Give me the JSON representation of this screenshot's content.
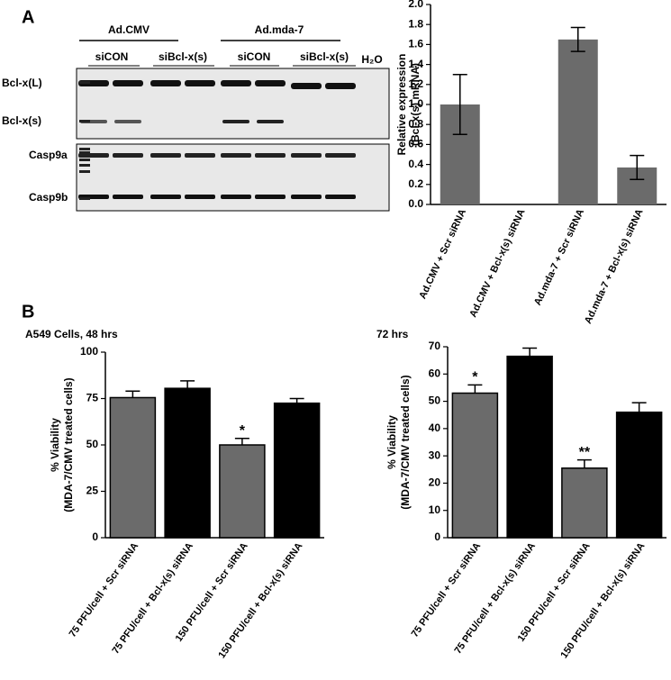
{
  "figure": {
    "panel_a": "A",
    "panel_b": "B"
  },
  "gel": {
    "groups": [
      "Ad.CMV",
      "Ad.mda-7"
    ],
    "subgroups": [
      "siCON",
      "siBcl-x(s)",
      "siCON",
      "siBcl-x(s)"
    ],
    "control": "H₂O",
    "rows": [
      "Bcl-x(L)",
      "Bcl-x(s)",
      "Casp9a",
      "Casp9b"
    ]
  },
  "chart_data": [
    {
      "type": "bar",
      "y_label": [
        "Relative expression",
        "(Bcl-x(s) mRNA)"
      ],
      "categories": [
        "Ad.CMV + Scr siRNA",
        "Ad.CMV + Bcl-x(s) siRNA",
        "Ad.mda-7 + Scr siRNA",
        "Ad.mda-7 + Bcl-x(s) siRNA"
      ],
      "values": [
        1.0,
        0,
        1.65,
        0.37
      ],
      "errors": [
        0.3,
        0,
        0.12,
        0.12
      ],
      "error_direction": "both",
      "colors": [
        "#6b6b6b",
        "#6b6b6b",
        "#6b6b6b",
        "#6b6b6b"
      ],
      "outline": false,
      "ylim": [
        0,
        2
      ],
      "yticks": [
        {
          "value": 0,
          "label": "0.0"
        },
        0.2,
        0.4,
        0.6,
        0.8,
        {
          "value": 1,
          "label": "1.0"
        },
        1.2,
        1.4,
        1.6,
        1.8,
        {
          "value": 2,
          "label": "2.0"
        }
      ]
    },
    {
      "type": "bar",
      "title": "A549 Cells, 48 hrs",
      "y_label": [
        "% Viability",
        "(MDA-7/CMV treated cells)"
      ],
      "categories": [
        "75 PFU/cell + Scr siRNA",
        "75 PFU/cell + Bcl-x(s) siRNA",
        "150 PFU/cell + Scr siRNA",
        "150 PFU/cell + Bcl-x(s) siRNA"
      ],
      "values": [
        75.5,
        80.5,
        50,
        72.5
      ],
      "errors": [
        3.5,
        4,
        3.5,
        2.5
      ],
      "error_direction": "up",
      "colors": [
        "#6b6b6b",
        "#000000",
        "#6b6b6b",
        "#000000"
      ],
      "outline": true,
      "annotations": [
        null,
        null,
        "*",
        null
      ],
      "ylim": [
        0,
        100
      ],
      "yticks": [
        0,
        25,
        50,
        75,
        100
      ]
    },
    {
      "type": "bar",
      "title": "72 hrs",
      "y_label": [
        "% Viability",
        "(MDA-7/CMV treated cells)"
      ],
      "categories": [
        "75 PFU/cell + Scr siRNA",
        "75 PFU/cell + Bcl-x(s) siRNA",
        "150 PFU/cell + Scr siRNA",
        "150 PFU/cell + Bcl-x(s) siRNA"
      ],
      "values": [
        53,
        66.5,
        25.5,
        46
      ],
      "errors": [
        3,
        3,
        3,
        3.5
      ],
      "error_direction": "up",
      "colors": [
        "#6b6b6b",
        "#000000",
        "#6b6b6b",
        "#000000"
      ],
      "outline": true,
      "annotations": [
        "*",
        null,
        "**",
        null
      ],
      "ylim": [
        0,
        70
      ],
      "yticks": [
        0,
        10,
        20,
        30,
        40,
        50,
        60,
        70
      ]
    }
  ]
}
